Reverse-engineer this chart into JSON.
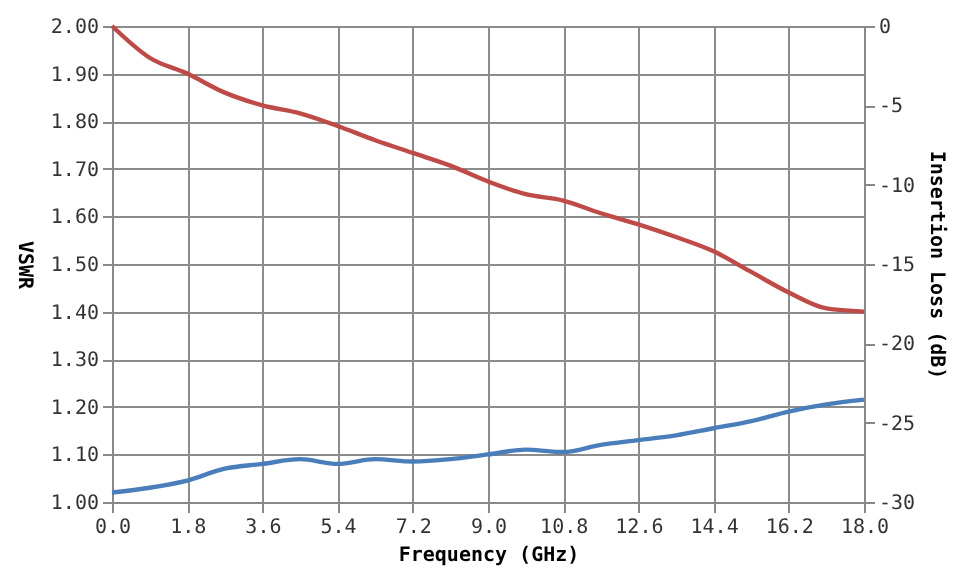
{
  "chart_data": {
    "type": "line",
    "xlabel": "Frequency (GHz)",
    "ylabel": "VSWR",
    "y2label": "Insertion Loss (dB)",
    "xlim": [
      0,
      18
    ],
    "xticks": [
      {
        "value": 0,
        "label": "0.0"
      },
      1.8,
      3.6,
      5.4,
      7.2,
      {
        "value": 9,
        "label": "9.0"
      },
      10.8,
      12.6,
      14.4,
      16.2,
      {
        "value": 18,
        "label": "18.0"
      }
    ],
    "ylim": [
      1,
      2
    ],
    "yticks": [
      {
        "value": 1,
        "label": "1.00"
      },
      {
        "value": 1.1,
        "label": "1.10"
      },
      {
        "value": 1.2,
        "label": "1.20"
      },
      {
        "value": 1.3,
        "label": "1.30"
      },
      {
        "value": 1.4,
        "label": "1.40"
      },
      {
        "value": 1.5,
        "label": "1.50"
      },
      {
        "value": 1.6,
        "label": "1.60"
      },
      {
        "value": 1.7,
        "label": "1.70"
      },
      {
        "value": 1.8,
        "label": "1.80"
      },
      {
        "value": 1.9,
        "label": "1.90"
      },
      {
        "value": 2,
        "label": "2.00"
      }
    ],
    "y2lim": [
      -30,
      0
    ],
    "y2ticks": [
      -30,
      -25,
      -20,
      -15,
      -10,
      -5,
      0
    ],
    "grid": true,
    "legend": false,
    "marker": "none",
    "line_style": "solid",
    "series": [
      {
        "color": "#4a7ebb",
        "x": [
          0,
          0.9,
          1.8,
          2.7,
          3.6,
          4.5,
          5.4,
          6.3,
          7.2,
          8.1,
          9,
          9.9,
          10.8,
          11.7,
          12.6,
          13.5,
          14.4,
          15.3,
          16.2,
          17.1,
          18
        ],
        "values": [
          1.02,
          1.03,
          1.045,
          1.07,
          1.08,
          1.09,
          1.08,
          1.09,
          1.085,
          1.09,
          1.1,
          1.11,
          1.105,
          1.12,
          1.13,
          1.14,
          1.155,
          1.17,
          1.19,
          1.205,
          1.215
        ]
      },
      {
        "color": "#be4b48",
        "axis": "y2",
        "x": [
          0,
          0.9,
          1.8,
          2.7,
          3.6,
          4.5,
          5.4,
          6.3,
          7.2,
          8.1,
          9,
          9.9,
          10.8,
          11.7,
          12.6,
          13.5,
          14.4,
          15.3,
          16.2,
          17.1,
          18
        ],
        "values": [
          0,
          -2,
          -3,
          -4.2,
          -5,
          -5.5,
          -6.3,
          -7.2,
          -8,
          -8.8,
          -9.8,
          -10.6,
          -11,
          -11.8,
          -12.5,
          -13.3,
          -14.2,
          -15.5,
          -16.8,
          -17.8,
          -18
        ]
      }
    ]
  }
}
